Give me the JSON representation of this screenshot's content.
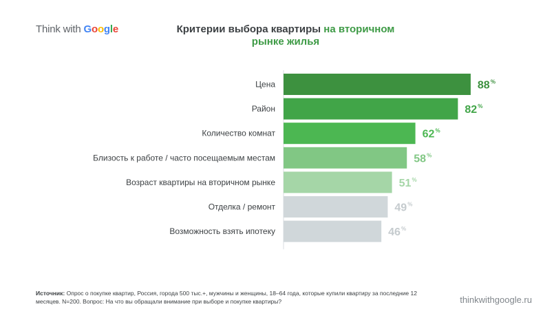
{
  "header": {
    "logo_prefix": "Think with ",
    "logo_brand": "Google",
    "title_main": "Критерии выбора квартиры ",
    "title_highlight_line1": "на вторичном",
    "title_highlight_line2": "рынке жилья"
  },
  "footer": {
    "source_label": "Источник:",
    "source_text": " Опрос о покупке квартир, Россия, города 500 тыс.+, мужчины и женщины, 18–64 года, которые купили квартиру за последние 12 месяцев. N=200. Вопрос: На что вы обращали внимание при выборе и покупке квартиры?",
    "site": "thinkwithgoogle.ru"
  },
  "colors": {
    "dark_green": "#3d913f",
    "green": "#41a548",
    "mid_green": "#4cb752",
    "light_green": "#81c784",
    "pale_green": "#a5d6a7",
    "gray": "#d0d7da",
    "gray_text": "#c5cbce"
  },
  "chart_data": {
    "type": "bar",
    "orientation": "horizontal",
    "categories": [
      "Цена",
      "Район",
      "Количество комнат",
      "Близость к работе / часто посещаемым местам",
      "Возраст квартиры на вторичном рынке",
      "Отделка / ремонт",
      "Возможность взять ипотеку"
    ],
    "values": [
      88,
      82,
      62,
      58,
      51,
      49,
      46
    ],
    "value_suffix": "%",
    "bar_colors": [
      "#3d913f",
      "#41a548",
      "#4cb752",
      "#81c784",
      "#a5d6a7",
      "#d0d7da",
      "#d0d7da"
    ],
    "label_colors": [
      "#3d913f",
      "#41a548",
      "#4cb752",
      "#81c784",
      "#a5d6a7",
      "#c5cbce",
      "#c5cbce"
    ],
    "xlim": [
      0,
      100
    ],
    "grid": false,
    "legend": "none"
  }
}
